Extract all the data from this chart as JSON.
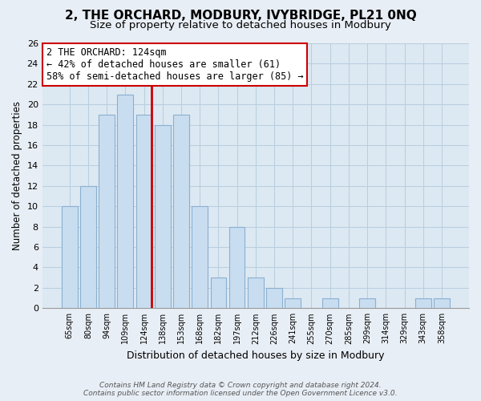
{
  "title": "2, THE ORCHARD, MODBURY, IVYBRIDGE, PL21 0NQ",
  "subtitle": "Size of property relative to detached houses in Modbury",
  "xlabel": "Distribution of detached houses by size in Modbury",
  "ylabel": "Number of detached properties",
  "bar_labels": [
    "65sqm",
    "80sqm",
    "94sqm",
    "109sqm",
    "124sqm",
    "138sqm",
    "153sqm",
    "168sqm",
    "182sqm",
    "197sqm",
    "212sqm",
    "226sqm",
    "241sqm",
    "255sqm",
    "270sqm",
    "285sqm",
    "299sqm",
    "314sqm",
    "329sqm",
    "343sqm",
    "358sqm"
  ],
  "bar_values": [
    10,
    12,
    19,
    21,
    19,
    18,
    19,
    10,
    3,
    8,
    3,
    2,
    1,
    0,
    1,
    0,
    1,
    0,
    0,
    1,
    1
  ],
  "bar_color": "#c9ddf0",
  "bar_edge_color": "#8ab0d0",
  "marker_bar_index": 4,
  "marker_color": "#cc0000",
  "annotation_title": "2 THE ORCHARD: 124sqm",
  "annotation_line1": "← 42% of detached houses are smaller (61)",
  "annotation_line2": "58% of semi-detached houses are larger (85) →",
  "annotation_box_facecolor": "#ffffff",
  "annotation_box_edgecolor": "#cc0000",
  "ylim": [
    0,
    26
  ],
  "yticks": [
    0,
    2,
    4,
    6,
    8,
    10,
    12,
    14,
    16,
    18,
    20,
    22,
    24,
    26
  ],
  "footer_line1": "Contains HM Land Registry data © Crown copyright and database right 2024.",
  "footer_line2": "Contains public sector information licensed under the Open Government Licence v3.0.",
  "bg_color": "#e8eef5",
  "plot_bg_color": "#dce8f2",
  "grid_color": "#b8cede",
  "title_fontsize": 11,
  "subtitle_fontsize": 9.5
}
